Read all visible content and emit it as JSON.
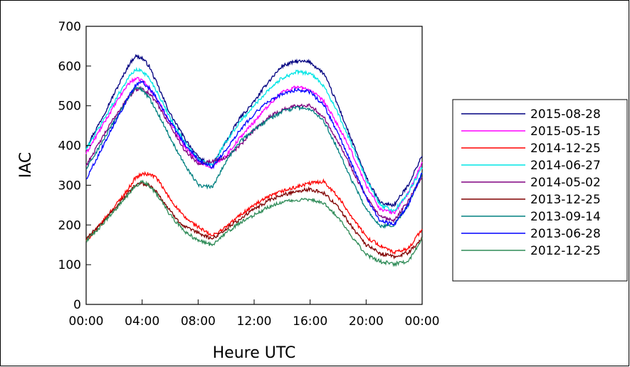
{
  "chart_data": {
    "type": "line",
    "title": "",
    "xlabel": "Heure UTC",
    "ylabel": "IAC",
    "xlim": [
      0,
      24
    ],
    "ylim": [
      0,
      700
    ],
    "xticks": [
      0,
      4,
      8,
      12,
      16,
      20,
      24
    ],
    "xtick_labels": [
      "00:00",
      "04:00",
      "08:00",
      "12:00",
      "16:00",
      "20:00",
      "00:00"
    ],
    "yticks": [
      0,
      100,
      200,
      300,
      400,
      500,
      600,
      700
    ],
    "ytick_labels": [
      "0",
      "100",
      "200",
      "300",
      "400",
      "500",
      "600",
      "700"
    ],
    "grid": false,
    "legend_position": "right",
    "x": [
      0,
      1,
      2,
      3,
      3.5,
      4,
      4.5,
      5,
      6,
      7,
      8,
      9,
      10,
      11,
      12,
      13,
      14,
      15,
      16,
      17,
      18,
      19,
      20,
      21,
      22,
      23,
      24
    ],
    "series": [
      {
        "name": "2015-08-28",
        "color": "#000080",
        "values": [
          395,
          460,
          530,
          600,
          625,
          620,
          600,
          560,
          480,
          420,
          370,
          350,
          410,
          470,
          510,
          560,
          600,
          612,
          610,
          580,
          500,
          410,
          320,
          255,
          250,
          300,
          375
        ]
      },
      {
        "name": "2015-05-15",
        "color": "#ff00ff",
        "values": [
          380,
          440,
          500,
          555,
          568,
          565,
          545,
          520,
          460,
          400,
          360,
          345,
          375,
          420,
          460,
          500,
          535,
          548,
          540,
          510,
          450,
          380,
          300,
          240,
          230,
          280,
          355
        ]
      },
      {
        "name": "2014-12-25",
        "color": "#ff0000",
        "values": [
          160,
          200,
          245,
          290,
          318,
          328,
          328,
          320,
          265,
          220,
          195,
          172,
          195,
          225,
          250,
          270,
          285,
          295,
          305,
          310,
          270,
          220,
          170,
          148,
          130,
          140,
          190
        ]
      },
      {
        "name": "2014-06-27",
        "color": "#00e5e5",
        "values": [
          390,
          450,
          510,
          570,
          590,
          588,
          570,
          540,
          470,
          410,
          365,
          350,
          410,
          460,
          500,
          540,
          570,
          585,
          582,
          550,
          480,
          400,
          315,
          250,
          235,
          280,
          345
        ]
      },
      {
        "name": "2014-05-02",
        "color": "#800080",
        "values": [
          350,
          410,
          470,
          520,
          540,
          545,
          530,
          510,
          450,
          390,
          355,
          360,
          370,
          400,
          440,
          470,
          490,
          500,
          502,
          470,
          410,
          340,
          270,
          220,
          210,
          260,
          320
        ]
      },
      {
        "name": "2013-12-25",
        "color": "#800000",
        "values": [
          165,
          200,
          240,
          280,
          300,
          305,
          300,
          285,
          235,
          195,
          180,
          165,
          190,
          215,
          240,
          260,
          275,
          285,
          290,
          280,
          245,
          195,
          150,
          128,
          120,
          130,
          165
        ]
      },
      {
        "name": "2013-09-14",
        "color": "#008080",
        "values": [
          340,
          400,
          460,
          520,
          545,
          540,
          520,
          490,
          420,
          355,
          300,
          295,
          360,
          410,
          440,
          465,
          485,
          495,
          492,
          460,
          390,
          310,
          240,
          195,
          200,
          250,
          330
        ]
      },
      {
        "name": "2013-06-28",
        "color": "#0000ff",
        "values": [
          315,
          385,
          455,
          520,
          550,
          560,
          545,
          520,
          460,
          405,
          365,
          345,
          390,
          440,
          480,
          510,
          530,
          540,
          535,
          500,
          430,
          350,
          270,
          210,
          200,
          250,
          330
        ]
      },
      {
        "name": "2012-12-25",
        "color": "#2e8b57",
        "values": [
          160,
          195,
          235,
          275,
          298,
          308,
          300,
          280,
          225,
          185,
          160,
          150,
          180,
          205,
          225,
          245,
          258,
          262,
          265,
          255,
          220,
          170,
          125,
          108,
          102,
          108,
          165
        ]
      }
    ]
  }
}
